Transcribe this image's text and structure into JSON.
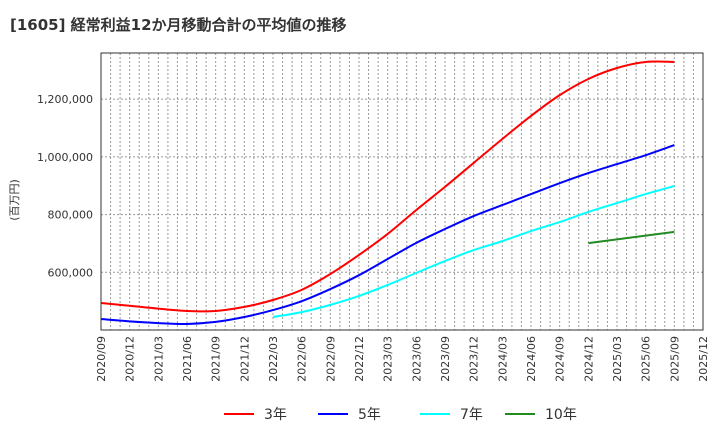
{
  "chart_data": {
    "type": "line",
    "title": "[1605]  経常利益12か月移動合計の平均値の推移",
    "ylabel": "(百万円)",
    "xlabel": "",
    "ylim": [
      400000,
      1360000
    ],
    "yticks": [
      600000,
      800000,
      1000000,
      1200000
    ],
    "ytick_labels": [
      "600,000",
      "800,000",
      "1,000,000",
      "1,200,000"
    ],
    "x": [
      "2020/09",
      "2020/12",
      "2021/03",
      "2021/06",
      "2021/09",
      "2021/12",
      "2022/03",
      "2022/06",
      "2022/09",
      "2022/12",
      "2023/03",
      "2023/06",
      "2023/09",
      "2023/12",
      "2024/03",
      "2024/06",
      "2024/09",
      "2024/12",
      "2025/03",
      "2025/06",
      "2025/09",
      "2025/12"
    ],
    "grid": true,
    "legend_placement": "bottom",
    "series": [
      {
        "name": "3年",
        "color": "#ff0000",
        "values": [
          493600,
          484000,
          474000,
          466000,
          466000,
          480000,
          504000,
          539000,
          594000,
          660000,
          733000,
          816000,
          896000,
          979000,
          1062000,
          1142000,
          1214000,
          1270000,
          1308000,
          1329000,
          1329000,
          null
        ]
      },
      {
        "name": "5年",
        "color": "#0000ff",
        "values": [
          438000,
          430000,
          424000,
          421000,
          428000,
          445000,
          469000,
          500000,
          542000,
          590000,
          646000,
          702000,
          750000,
          795000,
          833000,
          871000,
          909000,
          944000,
          975000,
          1006000,
          1041000,
          null
        ]
      },
      {
        "name": "7年",
        "color": "#00ffff",
        "values": [
          null,
          null,
          null,
          null,
          null,
          null,
          445000,
          462000,
          487000,
          518000,
          556000,
          598000,
          639000,
          677000,
          708000,
          743000,
          774000,
          809000,
          840000,
          871000,
          899000,
          null
        ]
      },
      {
        "name": "10年",
        "color": "#228b22",
        "values": [
          null,
          null,
          null,
          null,
          null,
          null,
          null,
          null,
          null,
          null,
          null,
          null,
          null,
          null,
          null,
          null,
          null,
          701000,
          714000,
          727000,
          740000,
          null
        ]
      }
    ]
  }
}
